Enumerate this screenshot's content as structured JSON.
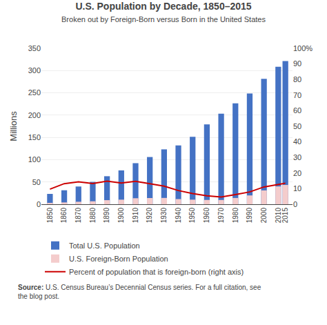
{
  "chart_data": {
    "type": "bar",
    "title": "U.S. Population by Decade, 1850–2015",
    "subtitle": "Broken out by Foreign-Born versus Born in the United States",
    "source_label": "Source:",
    "source": " U.S. Census Bureau’s Decennial Census series. For a full citation, see\nthe blog post.",
    "ylabel": "Millions",
    "x": [
      1850,
      1860,
      1870,
      1880,
      1890,
      1900,
      1910,
      1920,
      1930,
      1940,
      1950,
      1960,
      1970,
      1980,
      1990,
      2000,
      2010,
      2015
    ],
    "xlim": [
      1844,
      2020
    ],
    "xticks": [
      1850,
      1860,
      1870,
      1880,
      1890,
      1900,
      1910,
      1920,
      1930,
      1940,
      1950,
      1960,
      1970,
      1980,
      1990,
      2000,
      2010,
      2015
    ],
    "ylim": [
      0,
      350
    ],
    "yticks": [
      0,
      50,
      100,
      150,
      200,
      250,
      300,
      350
    ],
    "y2lim": [
      0,
      100
    ],
    "y2ticks": [
      0,
      10,
      20,
      30,
      40,
      50,
      60,
      70,
      80,
      90,
      {
        "value": 100,
        "label": "100%"
      }
    ],
    "grid": true,
    "legend": "lower left",
    "series": [
      {
        "name": "Total U.S. Population",
        "type": "bar",
        "color": "#4472C4",
        "values": [
          23.2,
          31.4,
          39.8,
          50.2,
          62.9,
          76.0,
          92.2,
          106.0,
          123.2,
          132.2,
          151.3,
          179.3,
          203.2,
          226.5,
          248.7,
          281.4,
          308.7,
          321.4
        ]
      },
      {
        "name": "U.S. Foreign-Born Population",
        "type": "bar",
        "color": "#F4CCCC",
        "values": [
          2.2,
          4.1,
          5.6,
          6.7,
          9.2,
          10.3,
          13.5,
          13.9,
          14.2,
          11.6,
          10.3,
          9.7,
          9.6,
          14.1,
          19.8,
          31.1,
          40.0,
          43.3
        ]
      },
      {
        "name": "Percent of population that is foreign-born (right axis)",
        "type": "line",
        "axis": "y2",
        "color": "#CC0000",
        "values": [
          9.7,
          13.2,
          14.4,
          13.3,
          14.8,
          13.6,
          14.7,
          13.2,
          11.6,
          8.8,
          6.9,
          5.4,
          4.7,
          6.2,
          7.9,
          11.1,
          12.9,
          13.5
        ]
      }
    ]
  }
}
